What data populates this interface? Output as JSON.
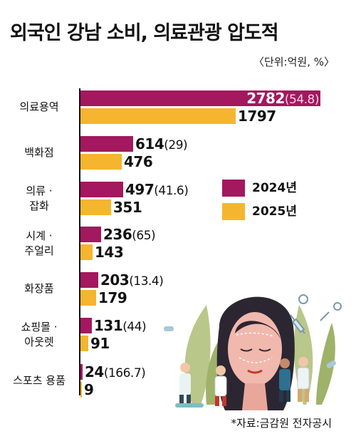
{
  "title": "외국인 강남 소비, 의료관광 압도적",
  "unit": "〈단위:억원, %〉",
  "source": "*자료:금감원 전자공시",
  "colors": {
    "y2024": "#a3185e",
    "y2025": "#f5b52e"
  },
  "legend": [
    {
      "label": "2024년",
      "color": "#a3185e"
    },
    {
      "label": "2025년",
      "color": "#f5b52e"
    }
  ],
  "chart_data": {
    "type": "bar",
    "orientation": "horizontal",
    "categories": [
      [
        "의료용역"
      ],
      [
        "백화점"
      ],
      [
        "의류 ·",
        "잡화"
      ],
      [
        "시계 ·",
        "주얼리"
      ],
      [
        "화장품"
      ],
      [
        "쇼핑몰 ·",
        "아웃렛"
      ],
      [
        "스포츠 용품"
      ]
    ],
    "series": [
      {
        "name": "2024년",
        "values": [
          2782,
          614,
          497,
          236,
          203,
          131,
          24
        ]
      },
      {
        "name": "2025년",
        "values": [
          1797,
          476,
          351,
          143,
          179,
          91,
          9
        ]
      }
    ],
    "annotations": [
      "(54.8)",
      "(29)",
      "(41.6)",
      "(65)",
      "(13.4)",
      "(44)",
      "(166.7)"
    ],
    "xlim": [
      0,
      2782
    ],
    "grid": false,
    "legend_position": "right"
  }
}
